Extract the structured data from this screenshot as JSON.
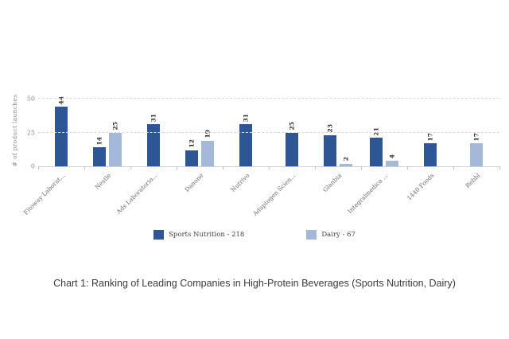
{
  "chart_data": {
    "type": "bar",
    "title": "Chart 1: Ranking of Leading Companies in High-Protein Beverages (Sports Nutrition, Dairy)",
    "xlabel": "",
    "ylabel": "# of product launches",
    "ylim": [
      0,
      50
    ],
    "yticks": [
      0,
      25,
      50
    ],
    "grid": "horizontal-dashed",
    "legend_position": "bottom",
    "categories": [
      "Fitoway Laborat...",
      "Nestle",
      "Ads Laboratorio...",
      "Danone",
      "Nutrivo",
      "Adaptogen Scien...",
      "Glanbia",
      "Integralmedica ...",
      "1440 Foods",
      "Rebbl"
    ],
    "series": [
      {
        "name": "Sports Nutrition - 218",
        "total": 218,
        "color": "#2e5695",
        "values": [
          44,
          14,
          31,
          12,
          31,
          25,
          23,
          21,
          17,
          null
        ]
      },
      {
        "name": "Dairy - 67",
        "total": 67,
        "color": "#a4b8da",
        "values": [
          null,
          25,
          null,
          19,
          null,
          null,
          2,
          4,
          null,
          17
        ]
      }
    ]
  },
  "colors": {
    "sports_nutrition": "#2e5695",
    "dairy": "#a4b8da",
    "gridline": "#d9d9d9",
    "axis_text": "#8a8a8a",
    "value_label": "#2b2b2b"
  }
}
